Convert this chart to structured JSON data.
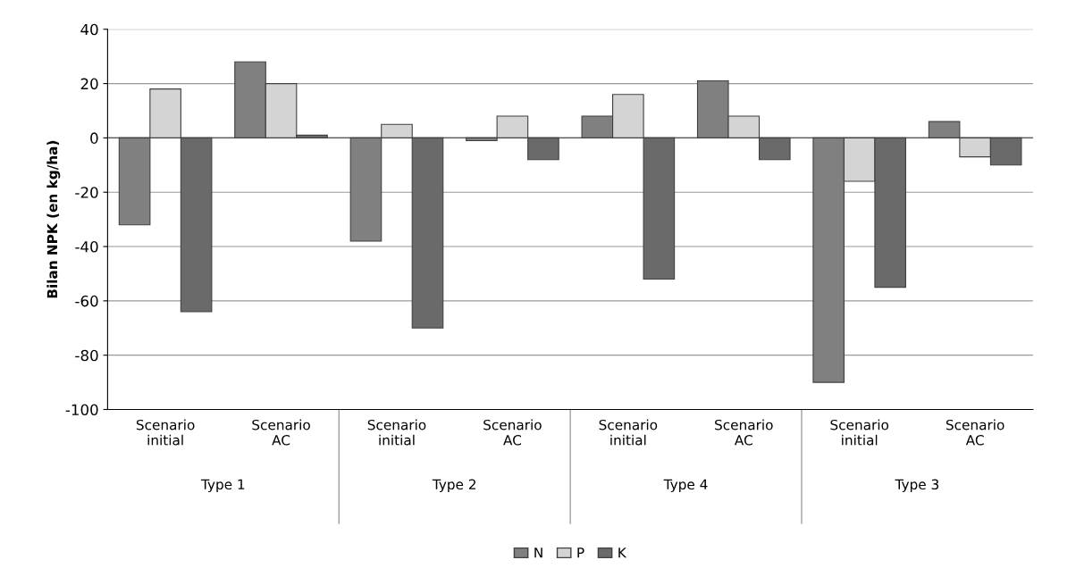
{
  "chart_data": {
    "type": "bar",
    "ylabel": "Bilan NPK (en kg/ha)",
    "categories": [
      "Scenario\ninitial",
      "Scenario\nAC",
      "Scenario\ninitial",
      "Scenario\nAC",
      "Scenario\ninitial",
      "Scenario\nAC",
      "Scenario\ninitial",
      "Scenario\nAC"
    ],
    "series": [
      {
        "name": "N",
        "color": "#808080",
        "values": [
          -32,
          28,
          -38,
          -1,
          8,
          21,
          -90,
          6
        ]
      },
      {
        "name": "P",
        "color": "#d4d4d4",
        "values": [
          18,
          20,
          5,
          8,
          16,
          8,
          -16,
          -7
        ]
      },
      {
        "name": "K",
        "color": "#6a6a6a",
        "values": [
          -64,
          1,
          -70,
          -8,
          -52,
          -8,
          -55,
          -10
        ]
      }
    ],
    "annotations": [
      "Type 1",
      "Type 2",
      "Type 4",
      "Type 3"
    ],
    "ylim": [
      -100,
      40
    ],
    "yticks": [
      -100,
      -80,
      -60,
      -40,
      -20,
      0,
      20,
      40
    ],
    "grid": "y",
    "legend": "bottom"
  }
}
